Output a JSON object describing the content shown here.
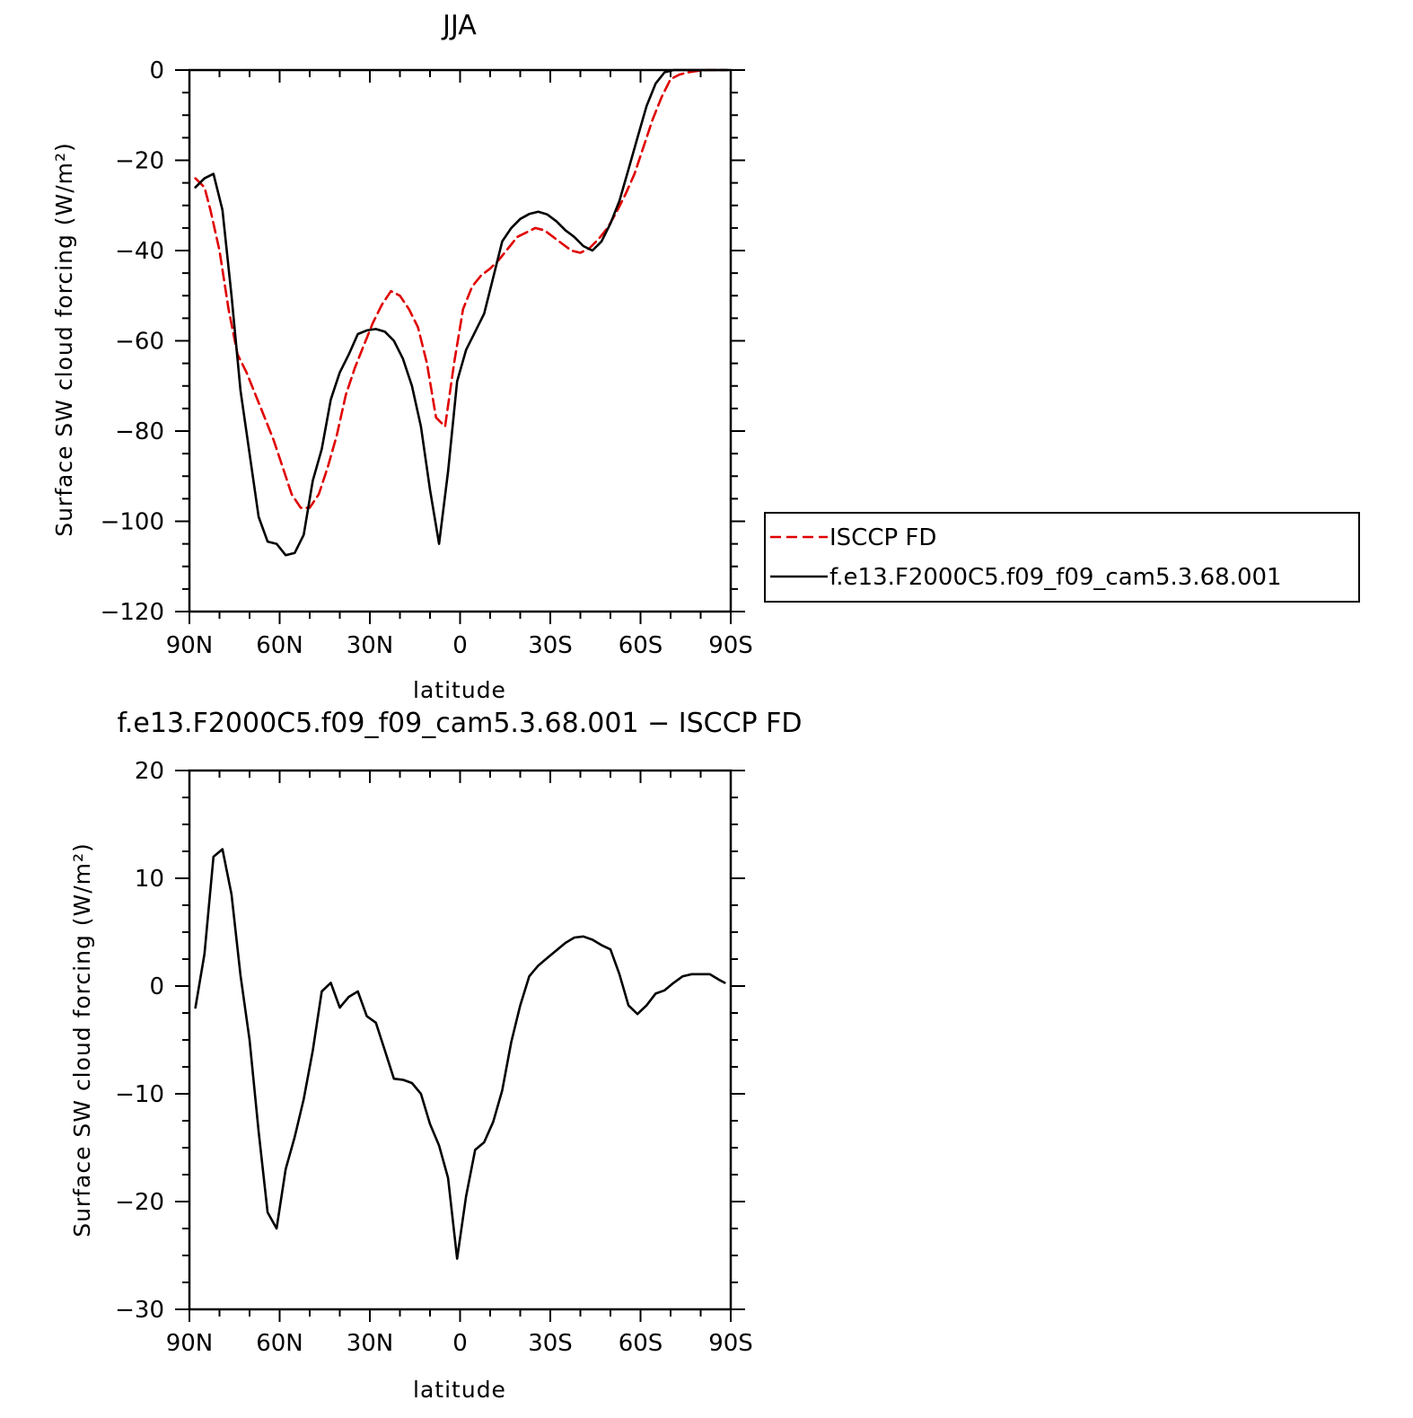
{
  "chart_data": [
    {
      "type": "line",
      "title": "JJA",
      "xlabel": "latitude",
      "ylabel": "Surface SW cloud forcing (W/m²)",
      "xlim": [
        90,
        -90
      ],
      "ylim": [
        -120,
        0
      ],
      "x_ticks": [
        {
          "value": 90,
          "label": "90N"
        },
        {
          "value": 60,
          "label": "60N"
        },
        {
          "value": 30,
          "label": "30N"
        },
        {
          "value": 0,
          "label": "0"
        },
        {
          "value": -30,
          "label": "30S"
        },
        {
          "value": -60,
          "label": "60S"
        },
        {
          "value": -90,
          "label": "90S"
        }
      ],
      "y_ticks": [
        {
          "value": 0,
          "label": "0"
        },
        {
          "value": -20,
          "label": "−20"
        },
        {
          "value": -40,
          "label": "−40"
        },
        {
          "value": -60,
          "label": "−60"
        },
        {
          "value": -80,
          "label": "−80"
        },
        {
          "value": -100,
          "label": "−100"
        },
        {
          "value": -120,
          "label": "−120"
        }
      ],
      "legend": "right",
      "series": [
        {
          "name": "ISCCP FD",
          "color": "#e00000",
          "dash": true,
          "x": [
            88,
            85,
            83,
            80,
            77,
            74,
            71,
            68,
            65,
            62,
            59,
            56,
            53,
            50,
            47,
            44,
            41,
            38,
            35,
            32,
            29,
            26,
            23,
            20,
            17,
            14,
            11,
            8,
            5,
            2,
            -1,
            -4,
            -7,
            -10,
            -13,
            -16,
            -19,
            -22,
            -25,
            -28,
            -31,
            -34,
            -37,
            -40,
            -43,
            -46,
            -49,
            -52,
            -55,
            -58,
            -61,
            -64,
            -67,
            -70,
            -73,
            -76,
            -79,
            -82,
            -85,
            -88
          ],
          "values": [
            -24,
            -26,
            -31,
            -40,
            -53,
            -63,
            -67,
            -72,
            -77,
            -82,
            -88,
            -94,
            -97,
            -97,
            -94,
            -88,
            -81,
            -72,
            -66,
            -61,
            -56,
            -52,
            -49,
            -50,
            -53,
            -57,
            -65,
            -77,
            -79,
            -65,
            -53,
            -48,
            -45.5,
            -44,
            -42,
            -39.5,
            -37,
            -36,
            -35,
            -35.5,
            -37,
            -38.5,
            -40,
            -40.5,
            -39.5,
            -37.5,
            -35,
            -31.5,
            -27.5,
            -23,
            -17,
            -11,
            -6,
            -2,
            -1,
            -0.5,
            -0.2,
            0,
            0,
            0
          ]
        },
        {
          "name": "f.e13.F2000C5.f09_f09_cam5.3.68.001",
          "color": "#000000",
          "dash": false,
          "x": [
            88,
            85,
            82,
            79,
            76,
            73,
            70,
            67,
            64,
            61,
            58,
            55,
            52,
            49,
            46,
            43,
            40,
            37,
            34,
            31,
            28,
            25,
            22,
            19,
            16,
            13,
            10,
            7,
            4,
            1,
            -2,
            -5,
            -8,
            -11,
            -14,
            -17,
            -20,
            -23,
            -26,
            -29,
            -32,
            -35,
            -38,
            -41,
            -44,
            -47,
            -50,
            -53,
            -56,
            -59,
            -62,
            -65,
            -68,
            -71,
            -74,
            -77,
            -80,
            -83,
            -86,
            -89
          ],
          "values": [
            -26,
            -24,
            -23,
            -31,
            -50,
            -71,
            -85,
            -99,
            -104.5,
            -105,
            -107.5,
            -107,
            -103,
            -91,
            -84,
            -73,
            -67,
            -63,
            -58.5,
            -57.7,
            -57.4,
            -58,
            -60,
            -64,
            -70,
            -79,
            -93,
            -105,
            -89,
            -69,
            -62,
            -58,
            -54,
            -46,
            -38,
            -35,
            -33,
            -31.9,
            -31.4,
            -32,
            -33.5,
            -35.5,
            -37,
            -39,
            -40,
            -38,
            -34,
            -29,
            -22,
            -15,
            -8,
            -3,
            -0.5,
            0,
            0,
            0,
            0,
            0,
            0,
            0
          ]
        }
      ]
    },
    {
      "type": "line",
      "title": "f.e13.F2000C5.f09_f09_cam5.3.68.001 − ISCCP FD",
      "xlabel": "latitude",
      "ylabel": "Surface SW cloud forcing (W/m²)",
      "xlim": [
        90,
        -90
      ],
      "ylim": [
        -30,
        20
      ],
      "x_ticks": [
        {
          "value": 90,
          "label": "90N"
        },
        {
          "value": 60,
          "label": "60N"
        },
        {
          "value": 30,
          "label": "30N"
        },
        {
          "value": 0,
          "label": "0"
        },
        {
          "value": -30,
          "label": "30S"
        },
        {
          "value": -60,
          "label": "60S"
        },
        {
          "value": -90,
          "label": "90S"
        }
      ],
      "y_ticks": [
        {
          "value": 20,
          "label": "20"
        },
        {
          "value": 10,
          "label": "10"
        },
        {
          "value": 0,
          "label": "0"
        },
        {
          "value": -10,
          "label": "−10"
        },
        {
          "value": -20,
          "label": "−20"
        },
        {
          "value": -30,
          "label": "−30"
        }
      ],
      "series": [
        {
          "color": "#000000",
          "dash": false,
          "x": [
            88,
            85,
            82,
            79,
            76,
            73,
            70,
            67,
            64,
            61,
            58,
            55,
            52,
            49,
            46,
            43,
            40,
            37,
            34,
            31,
            28,
            25,
            22,
            19,
            16,
            13,
            10,
            7,
            4,
            1,
            -2,
            -5,
            -8,
            -11,
            -14,
            -17,
            -20,
            -23,
            -26,
            -29,
            -32,
            -35,
            -38,
            -41,
            -44,
            -47,
            -50,
            -53,
            -56,
            -59,
            -62,
            -65,
            -68,
            -71,
            -74,
            -77,
            -80,
            -83,
            -86,
            -88
          ],
          "values": [
            -2,
            3,
            12,
            12.7,
            8.5,
            1,
            -5,
            -13.5,
            -21,
            -22.5,
            -17,
            -14,
            -10.5,
            -6,
            -0.5,
            0.3,
            -2,
            -1,
            -0.5,
            -2.8,
            -3.4,
            -6,
            -8.6,
            -8.7,
            -9,
            -10,
            -12.8,
            -14.8,
            -17.8,
            -25.3,
            -19.5,
            -15.2,
            -14.5,
            -12.6,
            -9.7,
            -5.2,
            -1.8,
            0.9,
            1.9,
            2.6,
            3.3,
            4,
            4.5,
            4.6,
            4.3,
            3.8,
            3.4,
            1.1,
            -1.8,
            -2.6,
            -1.8,
            -0.7,
            -0.4,
            0.3,
            0.9,
            1.1,
            1.1,
            1.1,
            0.6,
            0.3
          ]
        }
      ]
    }
  ]
}
